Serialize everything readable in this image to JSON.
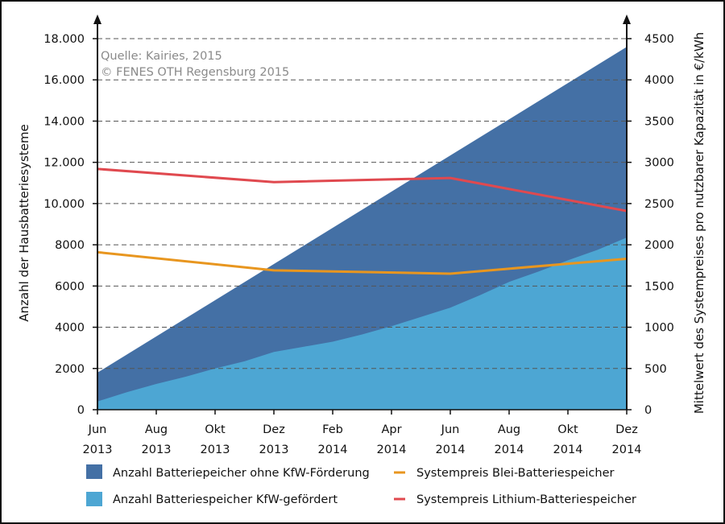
{
  "source": {
    "line1": "Quelle: Kairies, 2015",
    "line2": "© FENES OTH Regensburg 2015"
  },
  "chart_data": {
    "type": "area",
    "ylabel": "Anzahl der Hausbatteriesysteme",
    "y2label": "Mittelwert des Systempreises pro nutzbarer Kapazität in €/kWh",
    "ylim": [
      0,
      18000
    ],
    "y2lim": [
      0,
      4500
    ],
    "y_ticks": [
      {
        "value": 0,
        "label": "0"
      },
      {
        "value": 2000,
        "label": "2000"
      },
      {
        "value": 4000,
        "label": "4000"
      },
      {
        "value": 6000,
        "label": "6000"
      },
      {
        "value": 8000,
        "label": "8000"
      },
      {
        "value": 10000,
        "label": "10.000"
      },
      {
        "value": 12000,
        "label": "12.000"
      },
      {
        "value": 14000,
        "label": "14.000"
      },
      {
        "value": 16000,
        "label": "16.000"
      },
      {
        "value": 18000,
        "label": "18.000"
      }
    ],
    "y2_ticks": [
      "0",
      "500",
      "1000",
      "1500",
      "2000",
      "2500",
      "3000",
      "3500",
      "4000",
      "4500"
    ],
    "x_ticks": [
      {
        "month": "Jun",
        "year": "2013"
      },
      {
        "month": "Aug",
        "year": "2013"
      },
      {
        "month": "Okt",
        "year": "2013"
      },
      {
        "month": "Dez",
        "year": "2013"
      },
      {
        "month": "Feb",
        "year": "2014"
      },
      {
        "month": "Apr",
        "year": "2014"
      },
      {
        "month": "Jun",
        "year": "2014"
      },
      {
        "month": "Aug",
        "year": "2014"
      },
      {
        "month": "Okt",
        "year": "2014"
      },
      {
        "month": "Dez",
        "year": "2014"
      }
    ],
    "grid": "horizontal dashed",
    "legend": "bottom",
    "series": [
      {
        "name": "Anzahl Batteriepeicher ohne KfW-Förderung",
        "kind": "area",
        "axis": "left",
        "color": "#4470a5",
        "x": [
          0,
          9
        ],
        "values": [
          1800,
          17600
        ]
      },
      {
        "name": "Anzahl Batteriespeicher KfW-gefördert",
        "kind": "area",
        "axis": "left",
        "color": "#4da6d3",
        "x": [
          0,
          0.5,
          1,
          1.5,
          2,
          2.5,
          3,
          3.5,
          4,
          4.5,
          5,
          5.5,
          6,
          6.5,
          7,
          7.5,
          8,
          8.5,
          9
        ],
        "values": [
          400,
          850,
          1250,
          1600,
          2000,
          2350,
          2800,
          3050,
          3300,
          3650,
          4050,
          4500,
          4950,
          5550,
          6200,
          6700,
          7250,
          7750,
          8350
        ]
      },
      {
        "name": "Systempreis Blei-Batteriespeicher",
        "kind": "line",
        "axis": "right",
        "color": "#e8961f",
        "x": [
          0,
          3,
          6,
          9
        ],
        "values": [
          1910,
          1690,
          1650,
          1830
        ]
      },
      {
        "name": "Systempreis Lithium-Batteriespeicher",
        "kind": "line",
        "axis": "right",
        "color": "#e0494f",
        "x": [
          0,
          3,
          6,
          9
        ],
        "values": [
          2920,
          2760,
          2810,
          2410
        ]
      }
    ]
  }
}
